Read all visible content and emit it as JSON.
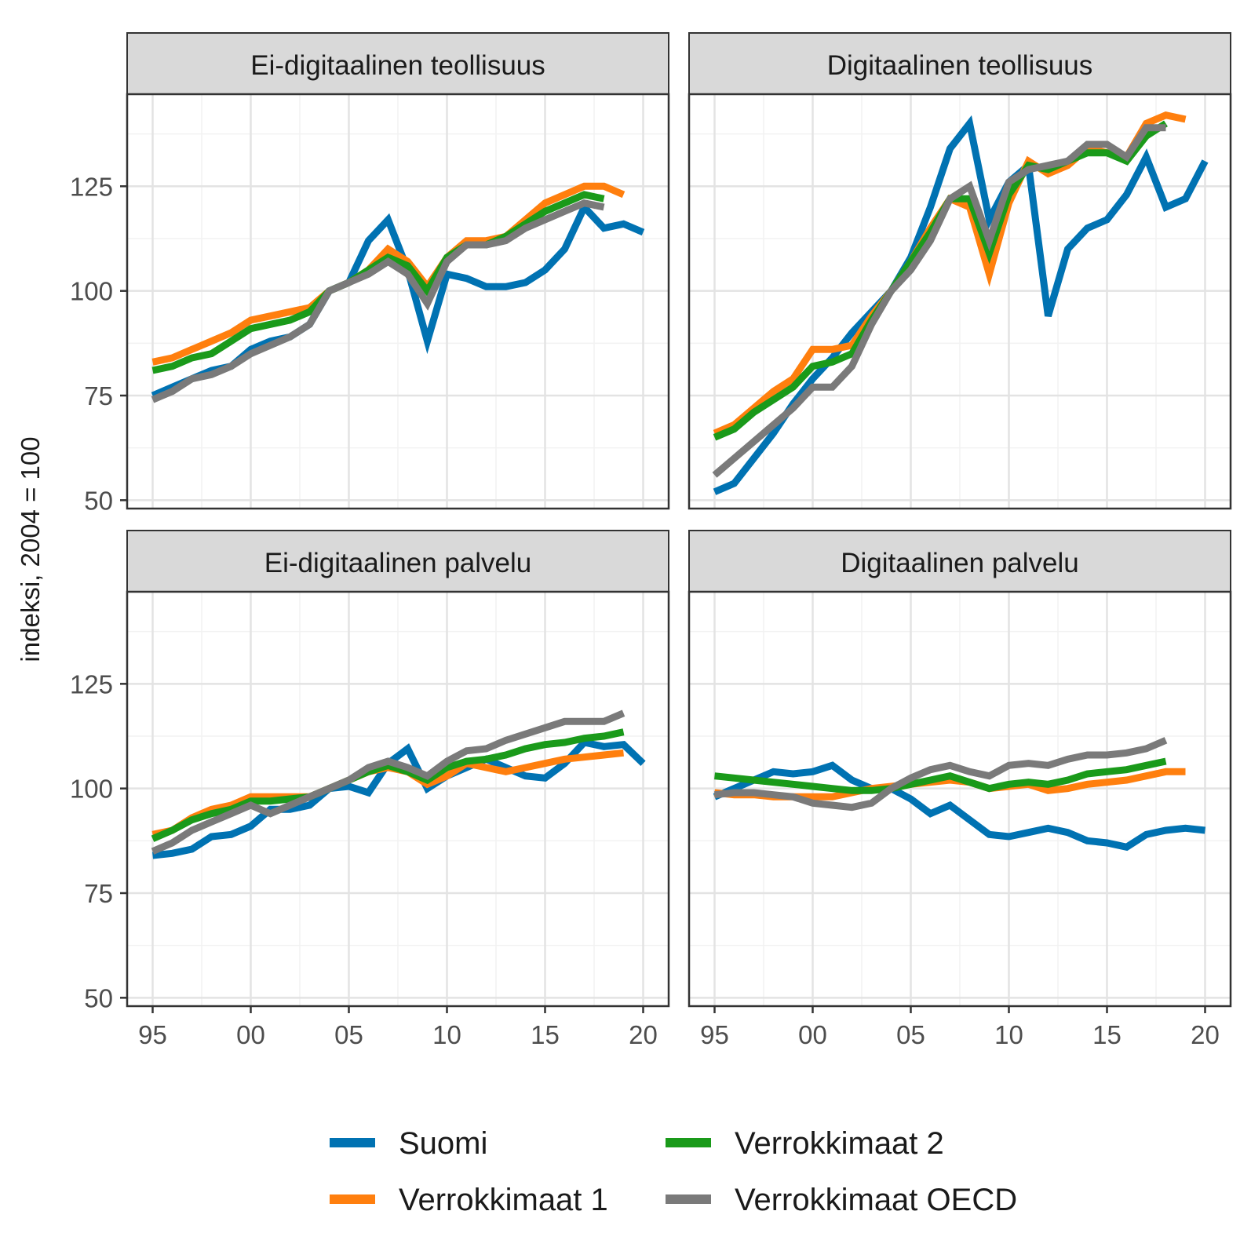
{
  "chart_data": {
    "type": "line",
    "ylabel": "indeksi, 2004 = 100",
    "xlabel": "",
    "ylim": [
      48,
      147
    ],
    "xlim": [
      1993.7,
      2021.3
    ],
    "y_ticks": [
      50,
      75,
      100,
      125
    ],
    "y_tick_labels": [
      "50",
      "75",
      "100",
      "125"
    ],
    "x_ticks": [
      1995,
      2000,
      2005,
      2010,
      2015,
      2020
    ],
    "x_tick_labels": [
      "95",
      "00",
      "05",
      "10",
      "15",
      "20"
    ],
    "grid": true,
    "legend_position": "bottom",
    "colors": {
      "Suomi": "#0072B2",
      "Verrokkimaat 1": "#FF7F0E",
      "Verrokkimaat 2": "#1A9A1A",
      "Verrokkimaat OECD": "#7A7A7A"
    },
    "legend": [
      "Suomi",
      "Verrokkimaat 1",
      "Verrokkimaat 2",
      "Verrokkimaat OECD"
    ],
    "panels": [
      {
        "title": "Ei-digitaalinen teollisuus",
        "series": [
          {
            "name": "Suomi",
            "x": [
              1995,
              1996,
              1997,
              1998,
              1999,
              2000,
              2001,
              2002,
              2003,
              2004,
              2005,
              2006,
              2007,
              2008,
              2009,
              2010,
              2011,
              2012,
              2013,
              2014,
              2015,
              2016,
              2017,
              2018,
              2019,
              2020
            ],
            "values": [
              75,
              77,
              79,
              81,
              82,
              86,
              88,
              89,
              92,
              100,
              102,
              112,
              117,
              105,
              88,
              104,
              103,
              101,
              101,
              102,
              105,
              110,
              120,
              115,
              116,
              114
            ]
          },
          {
            "name": "Verrokkimaat 1",
            "x": [
              1995,
              1996,
              1997,
              1998,
              1999,
              2000,
              2001,
              2002,
              2003,
              2004,
              2005,
              2006,
              2007,
              2008,
              2009,
              2010,
              2011,
              2012,
              2013,
              2014,
              2015,
              2016,
              2017,
              2018,
              2019
            ],
            "values": [
              83,
              84,
              86,
              88,
              90,
              93,
              94,
              95,
              96,
              100,
              102,
              105,
              110,
              107,
              101,
              108,
              112,
              112,
              113,
              117,
              121,
              123,
              125,
              125,
              123
            ]
          },
          {
            "name": "Verrokkimaat 2",
            "x": [
              1995,
              1996,
              1997,
              1998,
              1999,
              2000,
              2001,
              2002,
              2003,
              2004,
              2005,
              2006,
              2007,
              2008,
              2009,
              2010,
              2011,
              2012,
              2013,
              2014,
              2015,
              2016,
              2017,
              2018
            ],
            "values": [
              81,
              82,
              84,
              85,
              88,
              91,
              92,
              93,
              95,
              100,
              102,
              105,
              108,
              106,
              100,
              108,
              111,
              111,
              113,
              116,
              119,
              121,
              123,
              122
            ]
          },
          {
            "name": "Verrokkimaat OECD",
            "x": [
              1995,
              1996,
              1997,
              1998,
              1999,
              2000,
              2001,
              2002,
              2003,
              2004,
              2005,
              2006,
              2007,
              2008,
              2009,
              2010,
              2011,
              2012,
              2013,
              2014,
              2015,
              2016,
              2017,
              2018
            ],
            "values": [
              74,
              76,
              79,
              80,
              82,
              85,
              87,
              89,
              92,
              100,
              102,
              104,
              107,
              104,
              97,
              107,
              111,
              111,
              112,
              115,
              117,
              119,
              121,
              120
            ]
          }
        ]
      },
      {
        "title": "Digitaalinen teollisuus",
        "series": [
          {
            "name": "Suomi",
            "x": [
              1995,
              1996,
              1997,
              1998,
              1999,
              2000,
              2001,
              2002,
              2003,
              2004,
              2005,
              2006,
              2007,
              2008,
              2009,
              2010,
              2011,
              2012,
              2013,
              2014,
              2015,
              2016,
              2017,
              2018,
              2019,
              2020
            ],
            "values": [
              52,
              54,
              60,
              66,
              73,
              79,
              84,
              90,
              95,
              100,
              108,
              120,
              134,
              140,
              117,
              126,
              130,
              94,
              110,
              115,
              117,
              123,
              132,
              120,
              122,
              131
            ]
          },
          {
            "name": "Verrokkimaat 1",
            "x": [
              1995,
              1996,
              1997,
              1998,
              1999,
              2000,
              2001,
              2002,
              2003,
              2004,
              2005,
              2006,
              2007,
              2008,
              2009,
              2010,
              2011,
              2012,
              2013,
              2014,
              2015,
              2016,
              2017,
              2018,
              2019
            ],
            "values": [
              66,
              68,
              72,
              76,
              79,
              86,
              86,
              87,
              94,
              100,
              107,
              115,
              122,
              120,
              104,
              121,
              131,
              128,
              130,
              134,
              133,
              132,
              140,
              142,
              141
            ]
          },
          {
            "name": "Verrokkimaat 2",
            "x": [
              1995,
              1996,
              1997,
              1998,
              1999,
              2000,
              2001,
              2002,
              2003,
              2004,
              2005,
              2006,
              2007,
              2008,
              2009,
              2010,
              2011,
              2012,
              2013,
              2014,
              2015,
              2016,
              2017,
              2018
            ],
            "values": [
              65,
              67,
              71,
              74,
              77,
              82,
              83,
              85,
              93,
              100,
              107,
              114,
              122,
              122,
              109,
              123,
              130,
              129,
              131,
              133,
              133,
              131,
              137,
              140
            ]
          },
          {
            "name": "Verrokkimaat OECD",
            "x": [
              1995,
              1996,
              1997,
              1998,
              1999,
              2000,
              2001,
              2002,
              2003,
              2004,
              2005,
              2006,
              2007,
              2008,
              2009,
              2010,
              2011,
              2012,
              2013,
              2014,
              2015,
              2016,
              2017,
              2018
            ],
            "values": [
              56,
              60,
              64,
              68,
              72,
              77,
              77,
              82,
              92,
              100,
              105,
              112,
              122,
              125,
              112,
              126,
              129,
              130,
              131,
              135,
              135,
              132,
              139,
              139
            ]
          }
        ]
      },
      {
        "title": "Ei-digitaalinen palvelu",
        "series": [
          {
            "name": "Suomi",
            "x": [
              1995,
              1996,
              1997,
              1998,
              1999,
              2000,
              2001,
              2002,
              2003,
              2004,
              2005,
              2006,
              2007,
              2008,
              2009,
              2010,
              2011,
              2012,
              2013,
              2014,
              2015,
              2016,
              2017,
              2018,
              2019,
              2020
            ],
            "values": [
              84,
              84.5,
              85.5,
              88.5,
              89,
              91,
              95,
              95,
              96,
              100,
              100.5,
              99,
              106,
              109.5,
              100,
              103,
              105,
              107,
              105,
              103,
              102.5,
              106,
              111,
              110,
              110.5,
              106
            ]
          },
          {
            "name": "Verrokkimaat 1",
            "x": [
              1995,
              1996,
              1997,
              1998,
              1999,
              2000,
              2001,
              2002,
              2003,
              2004,
              2005,
              2006,
              2007,
              2008,
              2009,
              2010,
              2011,
              2012,
              2013,
              2014,
              2015,
              2016,
              2017,
              2018,
              2019
            ],
            "values": [
              89,
              90,
              93,
              95,
              96,
              98,
              98,
              98,
              98,
              100,
              102,
              104,
              105,
              104,
              101,
              103,
              106,
              105,
              104,
              105,
              106,
              107,
              107.5,
              108,
              108.5
            ]
          },
          {
            "name": "Verrokkimaat 2",
            "x": [
              1995,
              1996,
              1997,
              1998,
              1999,
              2000,
              2001,
              2002,
              2003,
              2004,
              2005,
              2006,
              2007,
              2008,
              2009,
              2010,
              2011,
              2012,
              2013,
              2014,
              2015,
              2016,
              2017,
              2018,
              2019
            ],
            "values": [
              88,
              90,
              92.5,
              94,
              95,
              97,
              97,
              97.5,
              98,
              100,
              102,
              104,
              105.5,
              104,
              102,
              105,
              106.5,
              107,
              108,
              109.5,
              110.5,
              111,
              112,
              112.5,
              113.5
            ]
          },
          {
            "name": "Verrokkimaat OECD",
            "x": [
              1995,
              1996,
              1997,
              1998,
              1999,
              2000,
              2001,
              2002,
              2003,
              2004,
              2005,
              2006,
              2007,
              2008,
              2009,
              2010,
              2011,
              2012,
              2013,
              2014,
              2015,
              2016,
              2017,
              2018,
              2019
            ],
            "values": [
              85,
              87,
              90,
              92,
              94,
              96,
              94,
              96,
              98,
              100,
              102,
              105,
              106.5,
              105,
              103,
              106.5,
              109,
              109.5,
              111.5,
              113,
              114.5,
              116,
              116,
              116,
              118
            ]
          }
        ]
      },
      {
        "title": "Digitaalinen palvelu",
        "series": [
          {
            "name": "Suomi",
            "x": [
              1995,
              1996,
              1997,
              1998,
              1999,
              2000,
              2001,
              2002,
              2003,
              2004,
              2005,
              2006,
              2007,
              2008,
              2009,
              2010,
              2011,
              2012,
              2013,
              2014,
              2015,
              2016,
              2017,
              2018,
              2019,
              2020
            ],
            "values": [
              98,
              100,
              102,
              104,
              103.5,
              104,
              105.5,
              102,
              100,
              100,
              97.5,
              94,
              96,
              92.5,
              89,
              88.5,
              89.5,
              90.5,
              89.5,
              87.5,
              87,
              86,
              89,
              90,
              90.5,
              90
            ]
          },
          {
            "name": "Verrokkimaat 1",
            "x": [
              1995,
              1996,
              1997,
              1998,
              1999,
              2000,
              2001,
              2002,
              2003,
              2004,
              2005,
              2006,
              2007,
              2008,
              2009,
              2010,
              2011,
              2012,
              2013,
              2014,
              2015,
              2016,
              2017,
              2018,
              2019
            ],
            "values": [
              99,
              98.5,
              98.5,
              98,
              98,
              98,
              98,
              99,
              100,
              100.5,
              101,
              101.5,
              102,
              101.5,
              100,
              100.5,
              101,
              99.5,
              100,
              101,
              101.5,
              102,
              103,
              104,
              104
            ]
          },
          {
            "name": "Verrokkimaat 2",
            "x": [
              1995,
              1996,
              1997,
              1998,
              1999,
              2000,
              2001,
              2002,
              2003,
              2004,
              2005,
              2006,
              2007,
              2008,
              2009,
              2010,
              2011,
              2012,
              2013,
              2014,
              2015,
              2016,
              2017,
              2018
            ],
            "values": [
              103,
              102.5,
              102,
              101.5,
              101,
              100.5,
              100,
              99.5,
              99.5,
              100,
              101,
              102,
              103,
              101.5,
              100,
              101,
              101.5,
              101,
              102,
              103.5,
              104,
              104.5,
              105.5,
              106.5
            ]
          },
          {
            "name": "Verrokkimaat OECD",
            "x": [
              1995,
              1996,
              1997,
              1998,
              1999,
              2000,
              2001,
              2002,
              2003,
              2004,
              2005,
              2006,
              2007,
              2008,
              2009,
              2010,
              2011,
              2012,
              2013,
              2014,
              2015,
              2016,
              2017,
              2018
            ],
            "values": [
              98.5,
              99,
              99,
              98.5,
              98,
              96.5,
              96,
              95.5,
              96.5,
              100,
              102.5,
              104.5,
              105.5,
              104,
              103,
              105.5,
              106,
              105.5,
              107,
              108,
              108,
              108.5,
              109.5,
              111.5
            ]
          }
        ]
      }
    ]
  }
}
